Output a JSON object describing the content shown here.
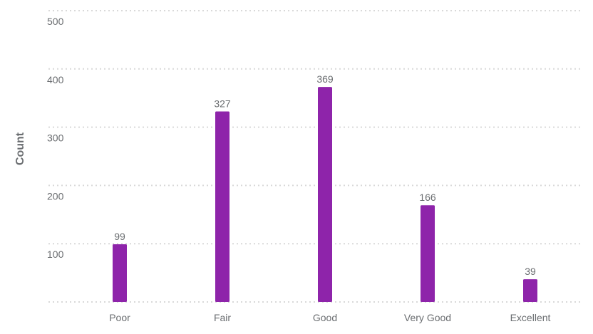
{
  "chart_data": {
    "type": "bar",
    "categories": [
      "Poor",
      "Fair",
      "Good",
      "Very Good",
      "Excellent"
    ],
    "values": [
      99,
      327,
      369,
      166,
      39
    ],
    "data_labels": [
      "99",
      "327",
      "369",
      "166",
      "39"
    ],
    "y_ticks": [
      100,
      200,
      300,
      400,
      500
    ],
    "title": "",
    "xlabel": "",
    "ylabel": "Count",
    "ylim": [
      0,
      500
    ],
    "grid": true,
    "legend": "none",
    "colors": {
      "bar": "#8e24aa",
      "grid": "#d9d9d9",
      "text": "#6a6d70"
    }
  }
}
